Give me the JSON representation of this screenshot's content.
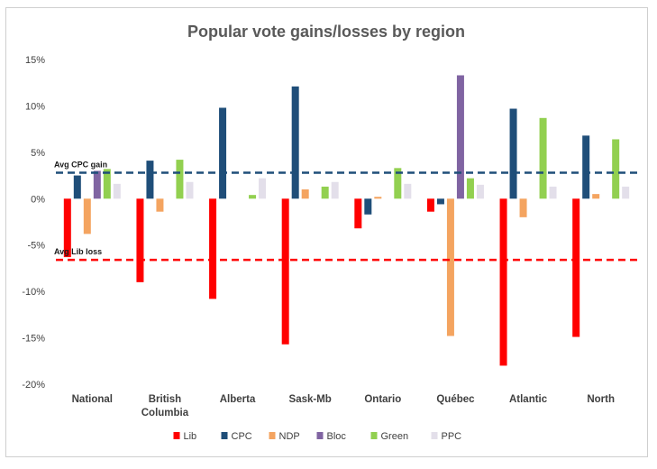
{
  "chart_data": {
    "type": "bar",
    "title": "Popular vote gains/losses by region",
    "xlabel": "",
    "ylabel": "",
    "ylim": [
      -20,
      15
    ],
    "yticks": [
      15,
      10,
      5,
      0,
      -5,
      -10,
      -15,
      -20
    ],
    "ytick_labels": [
      "15%",
      "10%",
      "5%",
      "0%",
      "-5%",
      "-10%",
      "-15%",
      "-20%"
    ],
    "grid": false,
    "legend_position": "bottom",
    "categories": [
      "National",
      "British Columbia",
      "Alberta",
      "Sask-Mb",
      "Ontario",
      "Québec",
      "Atlantic",
      "North"
    ],
    "category_lines": [
      [
        "National"
      ],
      [
        "British",
        "Columbia"
      ],
      [
        "Alberta"
      ],
      [
        "Sask-Mb"
      ],
      [
        "Ontario"
      ],
      [
        "Québec"
      ],
      [
        "Atlantic"
      ],
      [
        "North"
      ]
    ],
    "series": [
      {
        "name": "Lib",
        "color": "#ff0000",
        "values": [
          -6.3,
          -9.0,
          -10.8,
          -15.7,
          -3.2,
          -1.4,
          -18.0,
          -14.9
        ]
      },
      {
        "name": "CPC",
        "color": "#1f4e79",
        "values": [
          2.5,
          4.1,
          9.8,
          12.1,
          -1.7,
          -0.6,
          9.7,
          6.8
        ]
      },
      {
        "name": "NDP",
        "color": "#f4a460",
        "values": [
          -3.8,
          -1.4,
          0,
          1.0,
          0.2,
          -14.8,
          -2.0,
          0.5
        ]
      },
      {
        "name": "Bloc",
        "color": "#8064a2",
        "values": [
          3.0,
          0,
          0,
          0,
          0,
          13.3,
          0,
          0
        ]
      },
      {
        "name": "Green",
        "color": "#92d050",
        "values": [
          3.2,
          4.2,
          0.4,
          1.3,
          3.3,
          2.2,
          8.7,
          6.4
        ]
      },
      {
        "name": "PPC",
        "color": "#e3dfea",
        "values": [
          1.6,
          1.8,
          2.2,
          1.8,
          1.6,
          1.5,
          1.3,
          1.3
        ]
      }
    ],
    "reference_lines": [
      {
        "label": "Avg CPC gain",
        "value": 2.8,
        "color": "#1f4e79"
      },
      {
        "label": "Avg Lib loss",
        "value": -6.6,
        "color": "#ff0000"
      }
    ]
  }
}
